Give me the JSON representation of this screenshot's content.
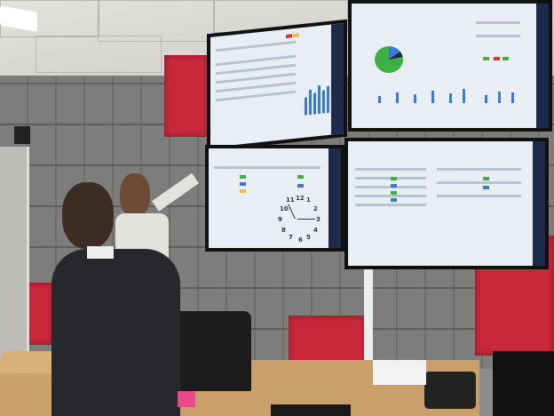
{
  "scene": {
    "clock_numbers": [
      "12",
      "1",
      "2",
      "3",
      "4",
      "5",
      "6",
      "7",
      "8",
      "9",
      "10",
      "11"
    ],
    "colors": {
      "panel_red": "#c8283a",
      "wall_gray": "#7d7d7b",
      "screen": "#e9eef5",
      "sidebar": "#1d2a4a",
      "chart_blue": "#3a7bd5",
      "pie_green": "#3cb043"
    }
  }
}
